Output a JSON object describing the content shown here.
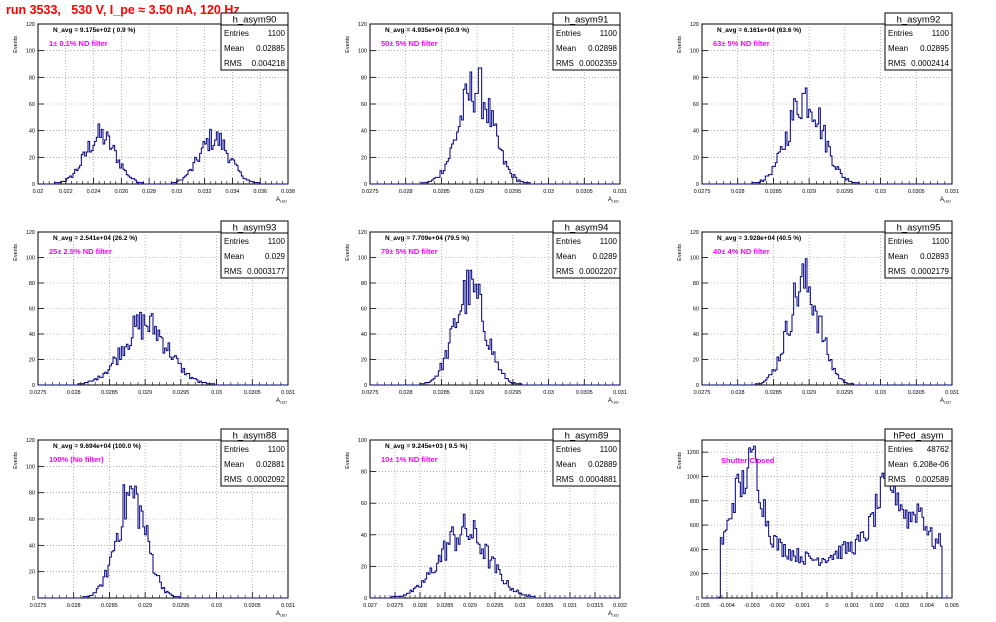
{
  "header": {
    "run_title": "run 3533,   530 V, I_pe ≈ 3.50 nA, 120 Hz"
  },
  "colors": {
    "histogram": "#000080",
    "annotation": "#ff00ff",
    "title": "#ff0000",
    "grid": "#888888"
  },
  "chart_data": [
    {
      "type": "histogram",
      "name": "h_asym90",
      "ylabel": "Events",
      "xlabel": "A_LED",
      "xlim": [
        0.02,
        0.038
      ],
      "ylim": [
        0,
        120
      ],
      "xticks": [
        "0.02",
        "0.022",
        "0.024",
        "0.026",
        "0.028",
        "0.03",
        "0.032",
        "0.034",
        "0.036",
        "0.038"
      ],
      "yticks": [
        "0",
        "20",
        "40",
        "60",
        "80",
        "100",
        "120"
      ],
      "stats": [
        [
          "Entries",
          "1100"
        ],
        [
          "Mean",
          "0.02885"
        ],
        [
          "RMS",
          "0.004218"
        ]
      ],
      "navg": "N_avg = 9.175e+02 ( 0.9 %)",
      "note": "1± 0.1% ND filter",
      "peaks": [
        [
          0.0245,
          0.0011,
          36
        ],
        [
          0.0327,
          0.0011,
          34
        ]
      ]
    },
    {
      "type": "histogram",
      "name": "h_asym91",
      "ylabel": "Events",
      "xlabel": "A_LED",
      "xlim": [
        0.0275,
        0.031
      ],
      "ylim": [
        0,
        120
      ],
      "xticks": [
        "0.0275",
        "0.028",
        "0.0285",
        "0.029",
        "0.0295",
        "0.03",
        "0.0305",
        "0.031"
      ],
      "yticks": [
        "0",
        "20",
        "40",
        "60",
        "80",
        "100",
        "120"
      ],
      "stats": [
        [
          "Entries",
          "1100"
        ],
        [
          "Mean",
          "0.02898"
        ],
        [
          "RMS",
          "0.0002359"
        ]
      ],
      "navg": "N_avg = 4.935e+04 (50.9 %)",
      "note": "50± 5% ND filter",
      "peaks": [
        [
          0.02898,
          0.000236,
          72
        ]
      ]
    },
    {
      "type": "histogram",
      "name": "h_asym92",
      "ylabel": "Events",
      "xlabel": "A_LED",
      "xlim": [
        0.0275,
        0.031
      ],
      "ylim": [
        0,
        120
      ],
      "xticks": [
        "0.0275",
        "0.028",
        "0.0285",
        "0.029",
        "0.0295",
        "0.03",
        "0.0305",
        "0.031"
      ],
      "yticks": [
        "0",
        "20",
        "40",
        "60",
        "80",
        "100",
        "120"
      ],
      "stats": [
        [
          "Entries",
          "1100"
        ],
        [
          "Mean",
          "0.02895"
        ],
        [
          "RMS",
          "0.0002414"
        ]
      ],
      "navg": "N_avg = 6.161e+04 (63.6 %)",
      "note": "63± 5% ND filter",
      "peaks": [
        [
          0.02895,
          0.000241,
          66
        ]
      ]
    },
    {
      "type": "histogram",
      "name": "h_asym93",
      "ylabel": "Events",
      "xlabel": "A_LED",
      "xlim": [
        0.0275,
        0.031
      ],
      "ylim": [
        0,
        120
      ],
      "xticks": [
        "0.0275",
        "0.028",
        "0.0285",
        "0.029",
        "0.0295",
        "0.03",
        "0.0305",
        "0.031"
      ],
      "yticks": [
        "0",
        "20",
        "40",
        "60",
        "80",
        "100",
        "120"
      ],
      "stats": [
        [
          "Entries",
          "1100"
        ],
        [
          "Mean",
          "0.029"
        ],
        [
          "RMS",
          "0.0003177"
        ]
      ],
      "navg": "N_avg = 2.541e+04 (26.2 %)",
      "note": "25± 2.5% ND filter",
      "peaks": [
        [
          0.029,
          0.000318,
          48
        ]
      ]
    },
    {
      "type": "histogram",
      "name": "h_asym94",
      "ylabel": "Events",
      "xlabel": "A_LED",
      "xlim": [
        0.0275,
        0.031
      ],
      "ylim": [
        0,
        120
      ],
      "xticks": [
        "0.0275",
        "0.028",
        "0.0285",
        "0.029",
        "0.0295",
        "0.03",
        "0.0305",
        "0.031"
      ],
      "yticks": [
        "0",
        "20",
        "40",
        "60",
        "80",
        "100",
        "120"
      ],
      "stats": [
        [
          "Entries",
          "1100"
        ],
        [
          "Mean",
          "0.0289"
        ],
        [
          "RMS",
          "0.0002207"
        ]
      ],
      "navg": "N_avg = 7.709e+04 (79.5 %)",
      "note": "79± 5% ND filter",
      "peaks": [
        [
          0.0289,
          0.000221,
          74
        ]
      ]
    },
    {
      "type": "histogram",
      "name": "h_asym95",
      "ylabel": "Events",
      "xlabel": "A_LED",
      "xlim": [
        0.0275,
        0.031
      ],
      "ylim": [
        0,
        120
      ],
      "xticks": [
        "0.0275",
        "0.028",
        "0.0285",
        "0.029",
        "0.0295",
        "0.03",
        "0.0305",
        "0.031"
      ],
      "yticks": [
        "0",
        "20",
        "40",
        "60",
        "80",
        "100",
        "120"
      ],
      "stats": [
        [
          "Entries",
          "1100"
        ],
        [
          "Mean",
          "0.02893"
        ],
        [
          "RMS",
          "0.0002179"
        ]
      ],
      "navg": "N_avg = 3.928e+04 (40.5 %)",
      "note": "40± 4% ND filter",
      "peaks": [
        [
          0.02893,
          0.000218,
          80
        ]
      ]
    },
    {
      "type": "histogram",
      "name": "h_asym88",
      "ylabel": "Events",
      "xlabel": "A_LED",
      "xlim": [
        0.0275,
        0.031
      ],
      "ylim": [
        0,
        120
      ],
      "xticks": [
        "0.0275",
        "0.028",
        "0.0285",
        "0.029",
        "0.0295",
        "0.03",
        "0.0305",
        "0.031"
      ],
      "yticks": [
        "0",
        "20",
        "40",
        "60",
        "80",
        "100",
        "120"
      ],
      "stats": [
        [
          "Entries",
          "1100"
        ],
        [
          "Mean",
          "0.02881"
        ],
        [
          "RMS",
          "0.0002092"
        ]
      ],
      "navg": "N_avg = 9.694e+04 (100.0 %)",
      "note": "100% (No filter)",
      "peaks": [
        [
          0.02881,
          0.000209,
          78
        ]
      ]
    },
    {
      "type": "histogram",
      "name": "h_asym89",
      "ylabel": "Events",
      "xlabel": "A_LED",
      "xlim": [
        0.027,
        0.032
      ],
      "ylim": [
        0,
        100
      ],
      "xticks": [
        "0.027",
        "0.0275",
        "0.028",
        "0.0285",
        "0.029",
        "0.0295",
        "0.03",
        "0.0305",
        "0.031",
        "0.0315",
        "0.032"
      ],
      "yticks": [
        "0",
        "20",
        "40",
        "60",
        "80",
        "100"
      ],
      "stats": [
        [
          "Entries",
          "1100"
        ],
        [
          "Mean",
          "0.02889"
        ],
        [
          "RMS",
          "0.0004881"
        ]
      ],
      "navg": "N_avg = 9.245e+03 ( 9.5 %)",
      "note": "10± 1% ND filter",
      "peaks": [
        [
          0.02889,
          0.000488,
          42
        ]
      ]
    },
    {
      "type": "histogram",
      "name": "hPed_asym",
      "ylabel": "Events",
      "xlabel": "",
      "xlim": [
        -0.005,
        0.005
      ],
      "ylim": [
        0,
        1300
      ],
      "xticks": [
        "-0.005",
        "-0.004",
        "-0.003",
        "-0.002",
        "-0.001",
        "0",
        "0.001",
        "0.002",
        "0.003",
        "0.004",
        "0.005"
      ],
      "yticks": [
        "0",
        "200",
        "400",
        "600",
        "800",
        "1000",
        "1200"
      ],
      "stats": [
        [
          "Entries",
          "48762"
        ],
        [
          "Mean",
          "6.208e-06"
        ],
        [
          "RMS",
          "0.002589"
        ]
      ],
      "navg": "",
      "note": "Shutter Closed",
      "peaks": []
    }
  ]
}
